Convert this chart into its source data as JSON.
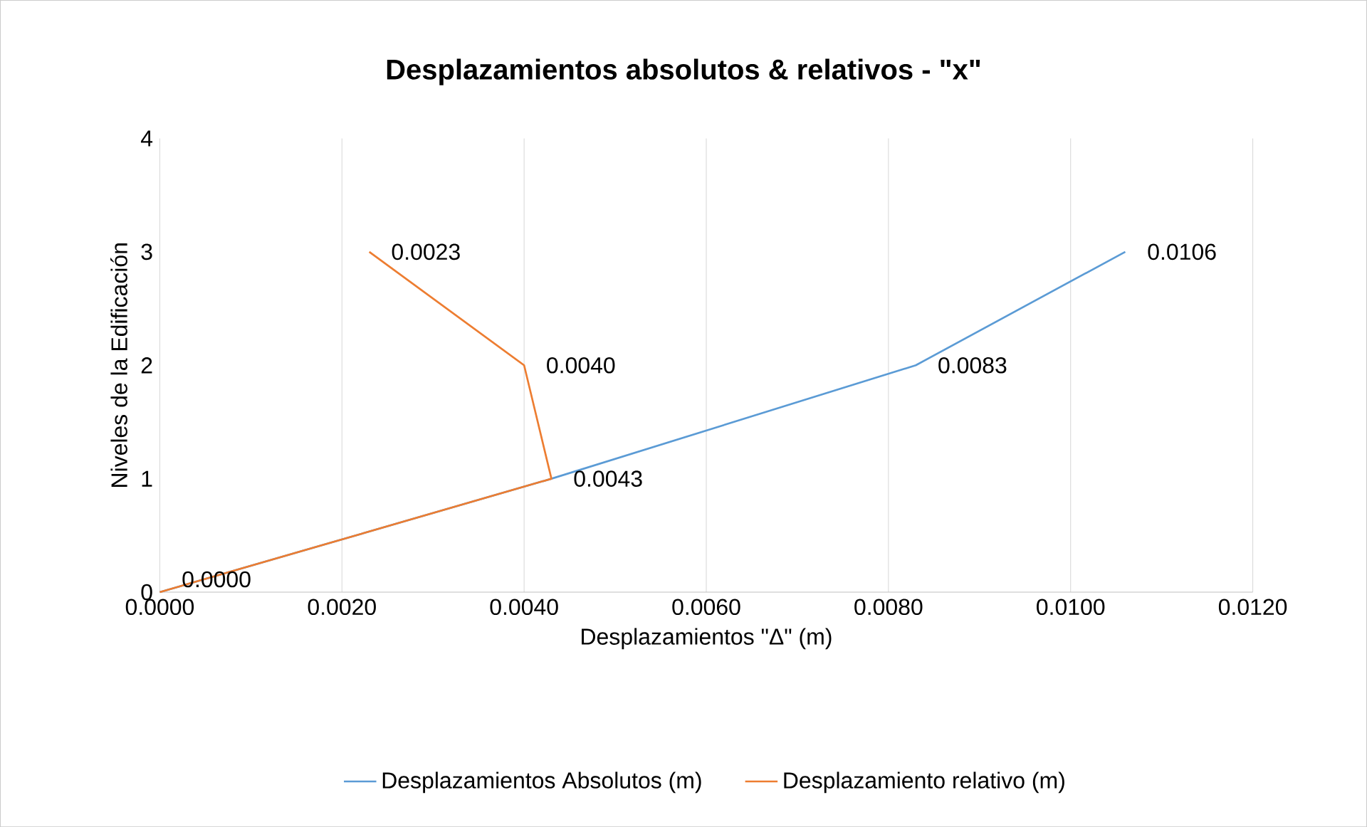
{
  "chart_data": {
    "type": "line",
    "title": "Desplazamientos absolutos & relativos - \"x\"",
    "xlabel": "Desplazamientos \"Δ\" (m)",
    "ylabel": "Niveles de la Edificación",
    "series": [
      {
        "name": "Desplazamientos Absolutos (m)",
        "color": "#5b9bd5",
        "x": [
          0,
          0.0043,
          0.0083,
          0.0106
        ],
        "values": [
          0,
          1,
          2,
          3
        ]
      },
      {
        "name": "Desplazamiento relativo (m)",
        "color": "#ed7d31",
        "x": [
          0,
          0.0043,
          0.004,
          0.0023
        ],
        "values": [
          0,
          1,
          2,
          3
        ]
      }
    ],
    "annotations": [
      {
        "text": "0.0000",
        "x": 0,
        "y": 0
      },
      {
        "text": "0.0043",
        "x": 0.0043,
        "y": 1
      },
      {
        "text": "0.0083",
        "x": 0.0083,
        "y": 2
      },
      {
        "text": "0.0106",
        "x": 0.0106,
        "y": 3
      },
      {
        "text": "0.0040",
        "x": 0.004,
        "y": 2
      },
      {
        "text": "0.0023",
        "x": 0.0023,
        "y": 3
      }
    ],
    "xlim": [
      0,
      0.012
    ],
    "xticks": [
      {
        "value": 0,
        "label": "0.0000"
      },
      {
        "value": 0.002,
        "label": "0.0020"
      },
      {
        "value": 0.004,
        "label": "0.0040"
      },
      {
        "value": 0.006,
        "label": "0.0060"
      },
      {
        "value": 0.008,
        "label": "0.0080"
      },
      {
        "value": 0.01,
        "label": "0.0100"
      },
      {
        "value": 0.012,
        "label": "0.0120"
      }
    ],
    "ylim": [
      0,
      4
    ],
    "yticks": [
      0,
      1,
      2,
      3,
      4
    ],
    "grid": "x",
    "legend": "bottom",
    "marker": "none",
    "line_style": "solid"
  }
}
